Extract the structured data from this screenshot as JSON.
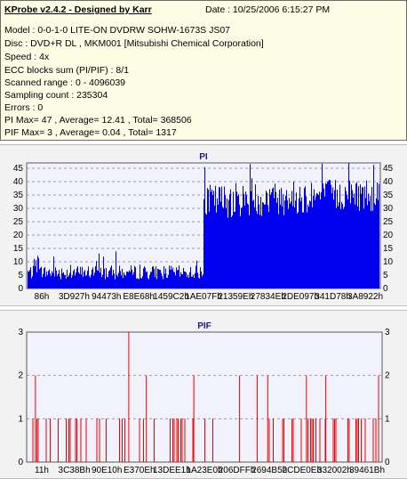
{
  "header": {
    "title": "KProbe v2.4.2 - Designed by Karr",
    "date": "Date : 10/25/2006 6:15:27 PM",
    "lines": [
      "Model : 0-0-1-0 LITE-ON DVDRW SOHW-1673S JS07",
      "Disc : DVD+R DL , MKM001 [Mitsubishi Chemical Corporation]",
      "Speed : 4x",
      "ECC blocks sum (PI/PIF) : 8/1",
      "Scanned range : 0 - 4096039",
      "Sampling count : 235304",
      "Errors : 0",
      "PI Max= 47 , Average= 12.41 , Total= 368506",
      "PIF Max= 3 , Average= 0.04 , Total= 1317"
    ]
  },
  "colors": {
    "pi_bar": "#0000ee",
    "pif_bar": "#ee0000",
    "plot_bg": "#f2f2fc",
    "grid": "#9a9aa8"
  },
  "chart_data": [
    {
      "type": "bar",
      "title": "PI",
      "ylim": [
        0,
        47
      ],
      "yticks": [
        0,
        5,
        10,
        15,
        20,
        25,
        30,
        35,
        40,
        45
      ],
      "xtick_labels": [
        "86h",
        "3D927h",
        "94473h",
        "E8E68h",
        "1459C2h",
        "1AE07Fh",
        "21359Eh",
        "27834Eh",
        "2DE097h",
        "341D78h",
        "3A8922h"
      ],
      "grid": true,
      "segments": [
        {
          "from": 0.0,
          "to": 0.5,
          "base": 5,
          "spread": 4,
          "peak": 14
        },
        {
          "from": 0.5,
          "to": 1.0,
          "base": 30,
          "spread": 10,
          "peak": 47
        }
      ]
    },
    {
      "type": "bar",
      "title": "PIF",
      "ylim": [
        0,
        3
      ],
      "yticks": [
        0,
        1,
        2,
        3
      ],
      "xtick_labels": [
        "11h",
        "3C38Bh",
        "90E10h",
        "E370Eh",
        "13DEE1h",
        "1A23E0h",
        "206DFFh",
        "2694B5h",
        "2CDE0Eh",
        "332002h",
        "39461Bh"
      ],
      "grid": true,
      "spikes_value_3": [
        0.285
      ],
      "spikes_value_2": [
        0.02,
        0.335,
        0.47,
        0.6,
        0.65,
        0.68,
        0.79,
        0.845,
        0.995
      ],
      "density_value_1": [
        [
          0.0,
          0.45,
          0.28
        ],
        [
          0.45,
          0.68,
          0.12
        ],
        [
          0.68,
          1.0,
          0.3
        ]
      ]
    }
  ]
}
